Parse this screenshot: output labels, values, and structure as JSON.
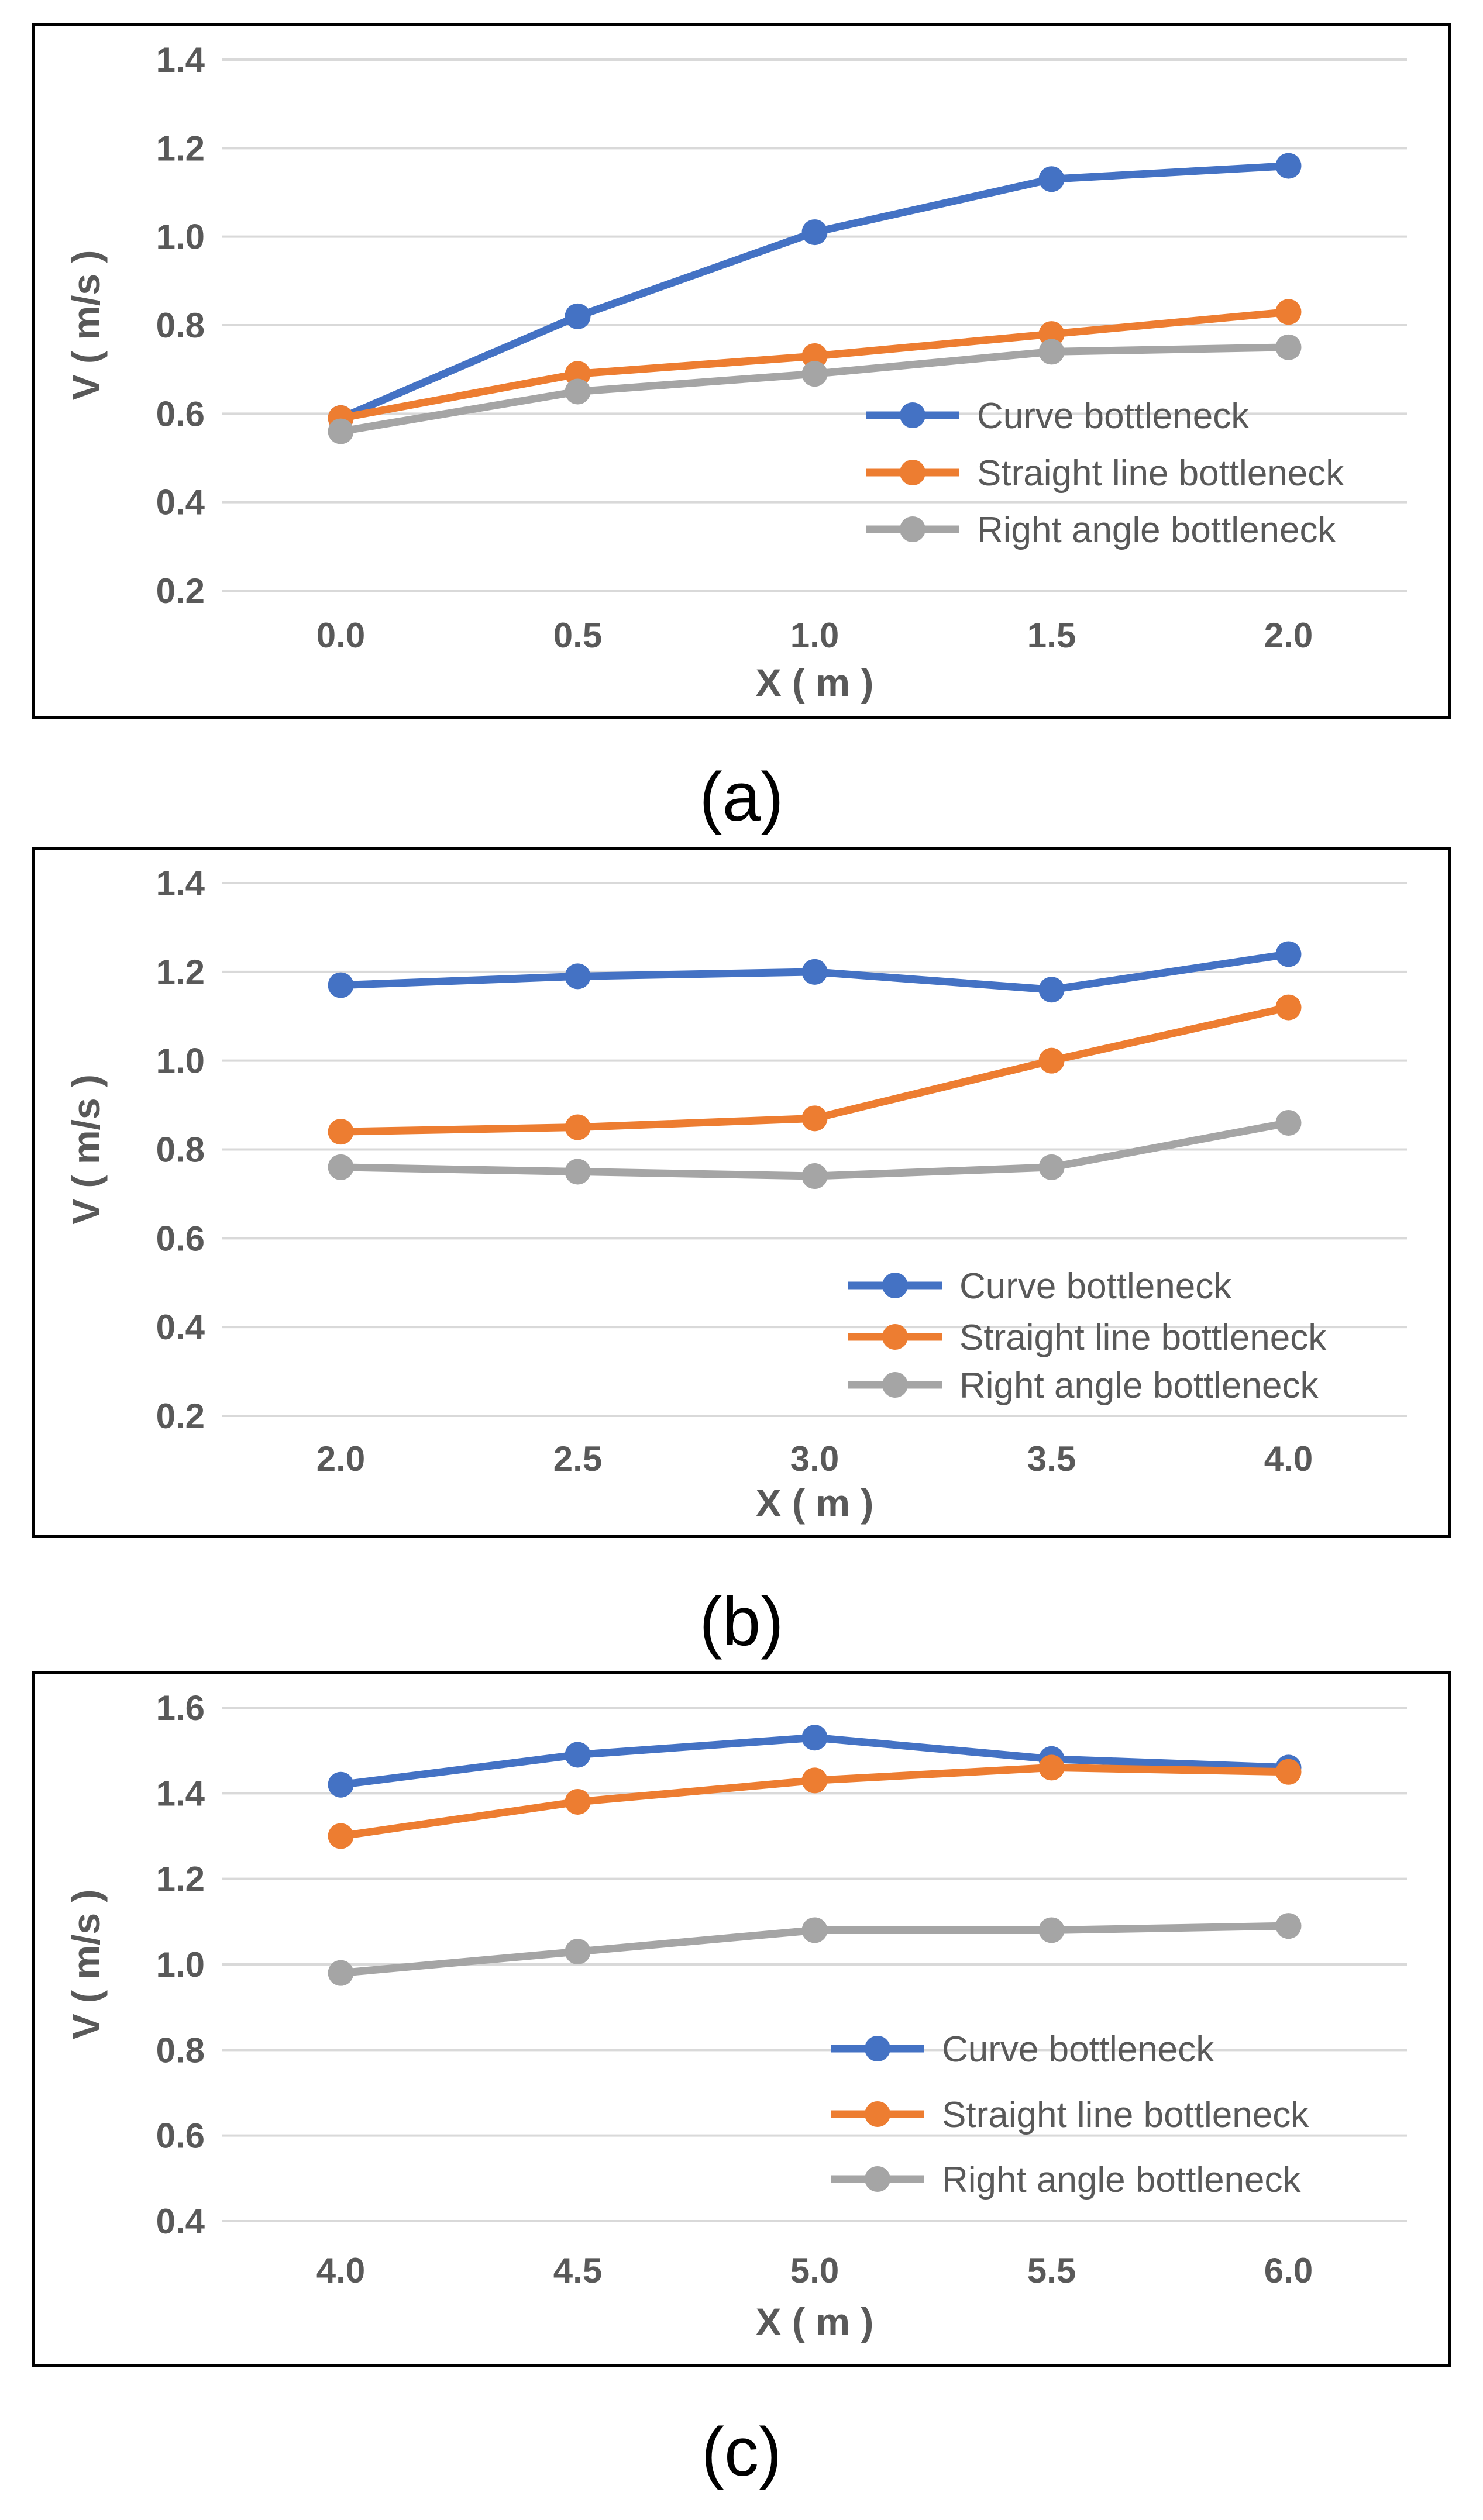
{
  "colors": {
    "curve": "#4472C4",
    "straight": "#ED7D31",
    "right_angle": "#A5A5A5",
    "grid": "#D9D9D9",
    "text": "#595959"
  },
  "chart_data": [
    {
      "type": "line",
      "caption": "(a)",
      "xlabel": "X ( m )",
      "ylabel": "V ( m/s )",
      "categories": [
        "0.0",
        "0.5",
        "1.0",
        "1.5",
        "2.0"
      ],
      "y_ticks": [
        "0.2",
        "0.4",
        "0.6",
        "0.8",
        "1.0",
        "1.2",
        "1.4"
      ],
      "ylim": [
        0.2,
        1.4
      ],
      "grid": true,
      "legend_position": "lower-right",
      "series": [
        {
          "name": "Curve bottleneck",
          "values": [
            0.59,
            0.82,
            1.01,
            1.13,
            1.16
          ]
        },
        {
          "name": "Straight line bottleneck",
          "values": [
            0.59,
            0.69,
            0.73,
            0.78,
            0.83
          ]
        },
        {
          "name": "Right angle bottleneck",
          "values": [
            0.56,
            0.65,
            0.69,
            0.74,
            0.75
          ]
        }
      ]
    },
    {
      "type": "line",
      "caption": "(b)",
      "xlabel": "X ( m )",
      "ylabel": "V ( m/s )",
      "categories": [
        "2.0",
        "2.5",
        "3.0",
        "3.5",
        "4.0"
      ],
      "y_ticks": [
        "0.2",
        "0.4",
        "0.6",
        "0.8",
        "1.0",
        "1.2",
        "1.4"
      ],
      "ylim": [
        0.2,
        1.4
      ],
      "grid": true,
      "legend_position": "lower-right",
      "series": [
        {
          "name": "Curve bottleneck",
          "values": [
            1.17,
            1.19,
            1.2,
            1.16,
            1.24
          ]
        },
        {
          "name": "Straight line bottleneck",
          "values": [
            0.84,
            0.85,
            0.87,
            1.0,
            1.12
          ]
        },
        {
          "name": "Right angle bottleneck",
          "values": [
            0.76,
            0.75,
            0.74,
            0.76,
            0.86
          ]
        }
      ]
    },
    {
      "type": "line",
      "caption": "(c)",
      "xlabel": "X ( m )",
      "ylabel": "V ( m/s )",
      "categories": [
        "4.0",
        "4.5",
        "5.0",
        "5.5",
        "6.0"
      ],
      "y_ticks": [
        "0.4",
        "0.6",
        "0.8",
        "1.0",
        "1.2",
        "1.4",
        "1.6"
      ],
      "ylim": [
        0.4,
        1.6
      ],
      "grid": true,
      "legend_position": "lower-right",
      "series": [
        {
          "name": "Curve bottleneck",
          "values": [
            1.42,
            1.49,
            1.53,
            1.48,
            1.46
          ]
        },
        {
          "name": "Straight line bottleneck",
          "values": [
            1.3,
            1.38,
            1.43,
            1.46,
            1.45
          ]
        },
        {
          "name": "Right angle bottleneck",
          "values": [
            0.98,
            1.03,
            1.08,
            1.08,
            1.09
          ]
        }
      ]
    }
  ]
}
